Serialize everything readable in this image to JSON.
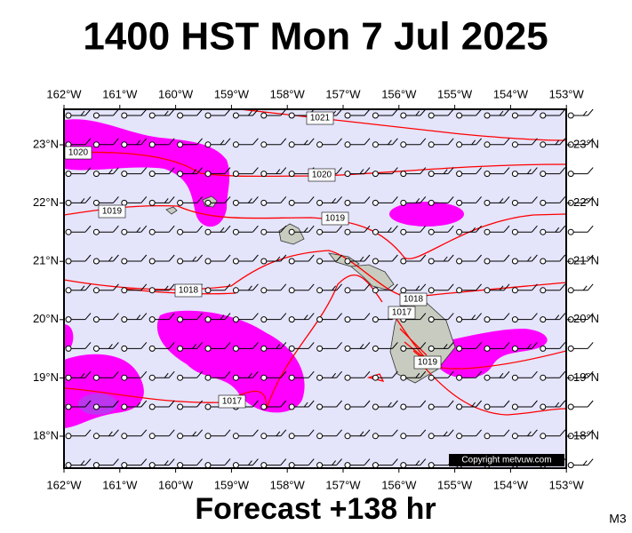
{
  "title": "1400 HST Mon 7 Jul 2025",
  "footer": "Forecast +138 hr",
  "model": "M3",
  "copyright": "Copyright metvuw.com",
  "lon_labels": [
    "162°W",
    "161°W",
    "160°W",
    "159°W",
    "158°W",
    "157°W",
    "156°W",
    "155°W",
    "154°W",
    "153°W"
  ],
  "lat_labels": [
    "23°N",
    "22°N",
    "21°N",
    "20°N",
    "19°N",
    "18°N"
  ],
  "isobar_labels": [
    "1021",
    "1020",
    "1020",
    "1019",
    "1019",
    "1018",
    "1018",
    "1017",
    "1019",
    "1017"
  ]
}
